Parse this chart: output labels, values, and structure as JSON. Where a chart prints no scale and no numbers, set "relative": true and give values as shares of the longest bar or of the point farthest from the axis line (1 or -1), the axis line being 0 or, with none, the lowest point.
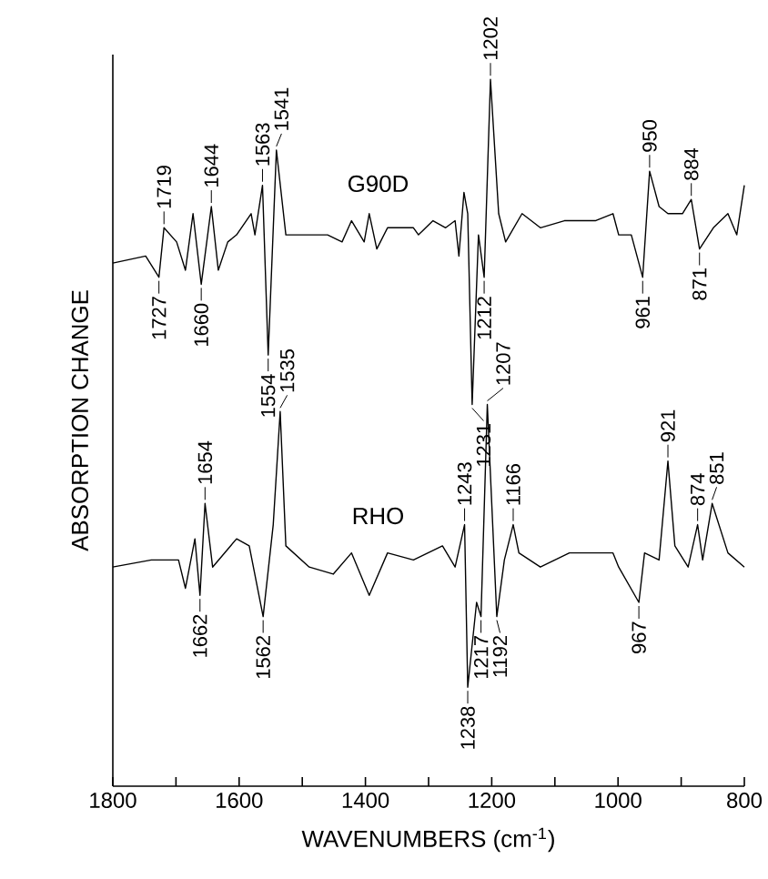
{
  "chart_data": {
    "type": "line",
    "xlabel": "WAVENUMBERS (cm$^{-1}$)",
    "ylabel": "ABSORPTION CHANGE",
    "relative": true,
    "tick_labels": "x",
    "xlim": [
      1800,
      800
    ],
    "xticks": [
      1800,
      {
        "value": 1700,
        "label": null
      },
      1600,
      {
        "value": 1500,
        "label": null
      },
      1400,
      {
        "value": 1300,
        "label": null
      },
      1200,
      {
        "value": 1100,
        "label": null
      },
      1000,
      {
        "value": 900,
        "label": null
      },
      800
    ],
    "series": [
      {
        "name": "G90D",
        "color": "#000000",
        "x": [
          1800,
          1748,
          1727,
          1719,
          1699,
          1685,
          1673,
          1660,
          1644,
          1633,
          1618,
          1604,
          1581,
          1575,
          1563,
          1554,
          1541,
          1526,
          1489,
          1460,
          1437,
          1422,
          1402,
          1394,
          1382,
          1365,
          1324,
          1316,
          1293,
          1273,
          1258,
          1252,
          1244,
          1238,
          1231,
          1221,
          1212,
          1202,
          1189,
          1178,
          1152,
          1123,
          1085,
          1036,
          1008,
          999,
          979,
          961,
          950,
          935,
          921,
          898,
          884,
          871,
          849,
          826,
          812,
          800
        ],
        "values": [
          0.74,
          0.75,
          0.72,
          0.79,
          0.77,
          0.73,
          0.81,
          0.71,
          0.82,
          0.73,
          0.77,
          0.78,
          0.81,
          0.78,
          0.85,
          0.61,
          0.9,
          0.78,
          0.78,
          0.78,
          0.77,
          0.8,
          0.77,
          0.81,
          0.76,
          0.79,
          0.79,
          0.78,
          0.8,
          0.79,
          0.8,
          0.75,
          0.84,
          0.81,
          0.54,
          0.78,
          0.72,
          1.0,
          0.81,
          0.77,
          0.81,
          0.79,
          0.8,
          0.8,
          0.81,
          0.78,
          0.78,
          0.72,
          0.87,
          0.82,
          0.81,
          0.81,
          0.83,
          0.76,
          0.79,
          0.81,
          0.78,
          0.85
        ]
      },
      {
        "name": "RHO",
        "color": "#000000",
        "x": [
          1800,
          1739,
          1696,
          1685,
          1670,
          1662,
          1654,
          1642,
          1604,
          1584,
          1562,
          1546,
          1535,
          1526,
          1489,
          1451,
          1422,
          1394,
          1365,
          1324,
          1278,
          1258,
          1243,
          1238,
          1224,
          1217,
          1207,
          1192,
          1180,
          1166,
          1157,
          1123,
          1077,
          1008,
          999,
          967,
          958,
          935,
          921,
          910,
          889,
          874,
          866,
          851,
          826,
          800
        ],
        "values": [
          0.31,
          0.32,
          0.32,
          0.28,
          0.35,
          0.27,
          0.4,
          0.31,
          0.35,
          0.34,
          0.24,
          0.37,
          0.53,
          0.34,
          0.31,
          0.3,
          0.33,
          0.27,
          0.33,
          0.32,
          0.34,
          0.31,
          0.37,
          0.14,
          0.26,
          0.24,
          0.54,
          0.24,
          0.32,
          0.37,
          0.33,
          0.31,
          0.33,
          0.33,
          0.31,
          0.26,
          0.33,
          0.32,
          0.46,
          0.34,
          0.31,
          0.37,
          0.32,
          0.4,
          0.33,
          0.31
        ]
      }
    ],
    "annotations": [
      {
        "text": "1727",
        "x": 1727,
        "y": 0.72
      },
      {
        "text": "1719",
        "x": 1719,
        "y": 0.79
      },
      {
        "text": "1660",
        "x": 1660,
        "y": 0.71
      },
      {
        "text": "1644",
        "x": 1644,
        "y": 0.82
      },
      {
        "text": "1563",
        "x": 1563,
        "y": 0.85
      },
      {
        "text": "1554",
        "x": 1554,
        "y": 0.61
      },
      {
        "text": "1541",
        "x": 1541,
        "y": 0.9
      },
      {
        "text": "1231",
        "x": 1231,
        "y": 0.54
      },
      {
        "text": "1212",
        "x": 1212,
        "y": 0.72
      },
      {
        "text": "1202",
        "x": 1202,
        "y": 1.0
      },
      {
        "text": "961",
        "x": 961,
        "y": 0.72
      },
      {
        "text": "950",
        "x": 950,
        "y": 0.87
      },
      {
        "text": "884",
        "x": 884,
        "y": 0.83
      },
      {
        "text": "871",
        "x": 871,
        "y": 0.76
      },
      {
        "text": "1662",
        "x": 1662,
        "y": 0.27
      },
      {
        "text": "1654",
        "x": 1654,
        "y": 0.4
      },
      {
        "text": "1562",
        "x": 1562,
        "y": 0.24
      },
      {
        "text": "1535",
        "x": 1535,
        "y": 0.53
      },
      {
        "text": "1243",
        "x": 1243,
        "y": 0.37
      },
      {
        "text": "1238",
        "x": 1238,
        "y": 0.14
      },
      {
        "text": "1217",
        "x": 1217,
        "y": 0.24
      },
      {
        "text": "1207",
        "x": 1207,
        "y": 0.54
      },
      {
        "text": "1192",
        "x": 1192,
        "y": 0.24
      },
      {
        "text": "1166",
        "x": 1166,
        "y": 0.37
      },
      {
        "text": "967",
        "x": 967,
        "y": 0.26
      },
      {
        "text": "921",
        "x": 921,
        "y": 0.46
      },
      {
        "text": "874",
        "x": 874,
        "y": 0.37
      },
      {
        "text": "851",
        "x": 851,
        "y": 0.4
      }
    ]
  }
}
